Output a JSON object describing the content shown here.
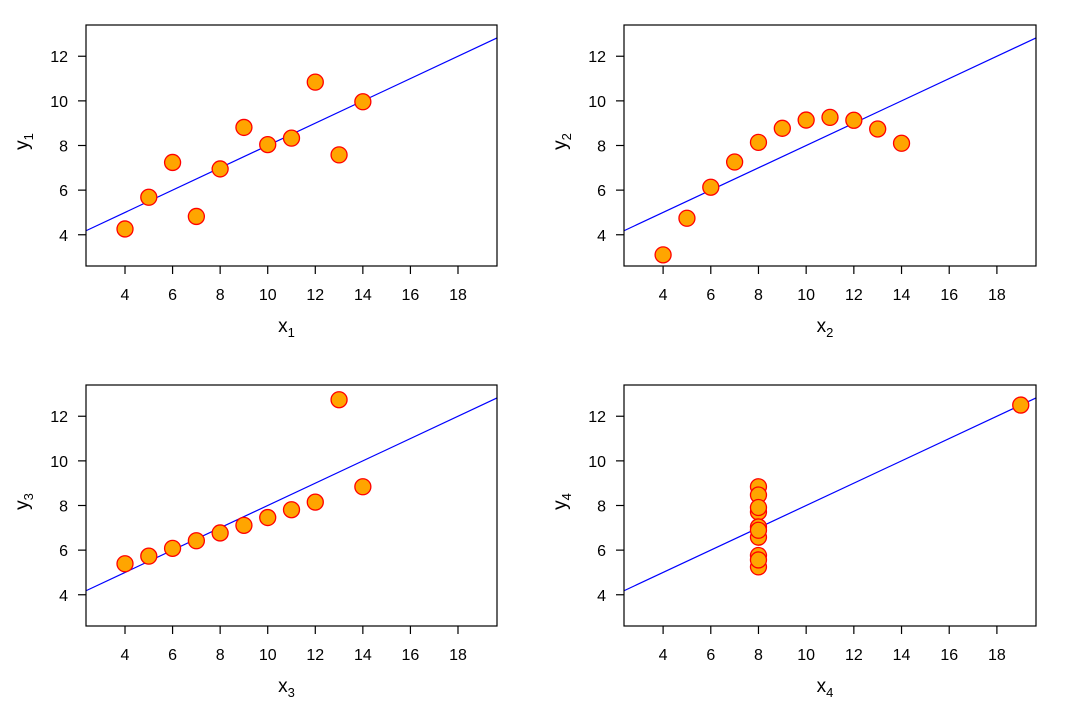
{
  "colors": {
    "point_fill": "#FFA500",
    "point_stroke": "#FF0000",
    "line": "#0000FF",
    "axis": "#000000"
  },
  "chart_data": [
    {
      "type": "scatter",
      "xlabel": "x",
      "xlabel_sub": "1",
      "ylabel": "y",
      "ylabel_sub": "1",
      "xlim": [
        3,
        19
      ],
      "ylim": [
        3,
        13
      ],
      "xticks": [
        "4",
        "6",
        "8",
        "10",
        "12",
        "14",
        "16",
        "18"
      ],
      "yticks": [
        "4",
        "6",
        "8",
        "10",
        "12"
      ],
      "fit_line": {
        "intercept": 3,
        "slope": 0.5
      },
      "x": [
        10,
        8,
        13,
        9,
        11,
        14,
        6,
        4,
        12,
        7,
        5
      ],
      "y": [
        8.04,
        6.95,
        7.58,
        8.81,
        8.33,
        9.96,
        7.24,
        4.26,
        10.84,
        4.82,
        5.68
      ]
    },
    {
      "type": "scatter",
      "xlabel": "x",
      "xlabel_sub": "2",
      "ylabel": "y",
      "ylabel_sub": "2",
      "xlim": [
        3,
        19
      ],
      "ylim": [
        3,
        13
      ],
      "xticks": [
        "4",
        "6",
        "8",
        "10",
        "12",
        "14",
        "16",
        "18"
      ],
      "yticks": [
        "4",
        "6",
        "8",
        "10",
        "12"
      ],
      "fit_line": {
        "intercept": 3,
        "slope": 0.5
      },
      "x": [
        10,
        8,
        13,
        9,
        11,
        14,
        6,
        4,
        12,
        7,
        5
      ],
      "y": [
        9.14,
        8.14,
        8.74,
        8.77,
        9.26,
        8.1,
        6.13,
        3.1,
        9.13,
        7.26,
        4.74
      ]
    },
    {
      "type": "scatter",
      "xlabel": "x",
      "xlabel_sub": "3",
      "ylabel": "y",
      "ylabel_sub": "3",
      "xlim": [
        3,
        19
      ],
      "ylim": [
        3,
        13
      ],
      "xticks": [
        "4",
        "6",
        "8",
        "10",
        "12",
        "14",
        "16",
        "18"
      ],
      "yticks": [
        "4",
        "6",
        "8",
        "10",
        "12"
      ],
      "fit_line": {
        "intercept": 3,
        "slope": 0.5
      },
      "x": [
        10,
        8,
        13,
        9,
        11,
        14,
        6,
        4,
        12,
        7,
        5
      ],
      "y": [
        7.46,
        6.77,
        12.74,
        7.11,
        7.81,
        8.84,
        6.08,
        5.39,
        8.15,
        6.42,
        5.73
      ]
    },
    {
      "type": "scatter",
      "xlabel": "x",
      "xlabel_sub": "4",
      "ylabel": "y",
      "ylabel_sub": "4",
      "xlim": [
        3,
        19
      ],
      "ylim": [
        3,
        13
      ],
      "xticks": [
        "4",
        "6",
        "8",
        "10",
        "12",
        "14",
        "16",
        "18"
      ],
      "yticks": [
        "4",
        "6",
        "8",
        "10",
        "12"
      ],
      "fit_line": {
        "intercept": 3,
        "slope": 0.5
      },
      "x": [
        8,
        8,
        8,
        8,
        8,
        8,
        8,
        19,
        8,
        8,
        8
      ],
      "y": [
        6.58,
        5.76,
        7.71,
        8.84,
        8.47,
        7.04,
        5.25,
        12.5,
        5.56,
        7.91,
        6.89
      ]
    }
  ]
}
